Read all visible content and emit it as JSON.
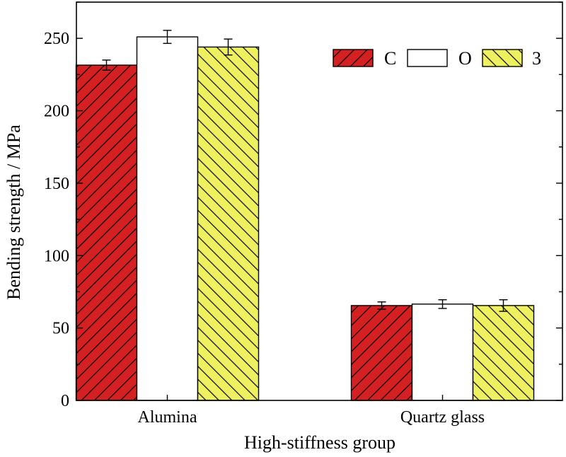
{
  "chart_data": {
    "type": "bar",
    "title": "",
    "xlabel": "High-stiffness group",
    "ylabel": "Bending strength / MPa",
    "categories": [
      "Alumina",
      "Quartz glass"
    ],
    "ylim": [
      0,
      275
    ],
    "yticks": [
      0,
      50,
      100,
      150,
      200,
      250
    ],
    "grid": false,
    "legend": "top-right",
    "series": [
      {
        "name": "C",
        "values": [
          231.5,
          65.5
        ],
        "errors": [
          3.5,
          2.5
        ],
        "color": "#d42020"
      },
      {
        "name": "O",
        "values": [
          251,
          66.5
        ],
        "errors": [
          4.5,
          3.0
        ],
        "color": "#ffffff"
      },
      {
        "name": "3",
        "values": [
          244,
          65.5
        ],
        "errors": [
          5.5,
          4.0
        ],
        "color": "#eef060"
      }
    ]
  }
}
